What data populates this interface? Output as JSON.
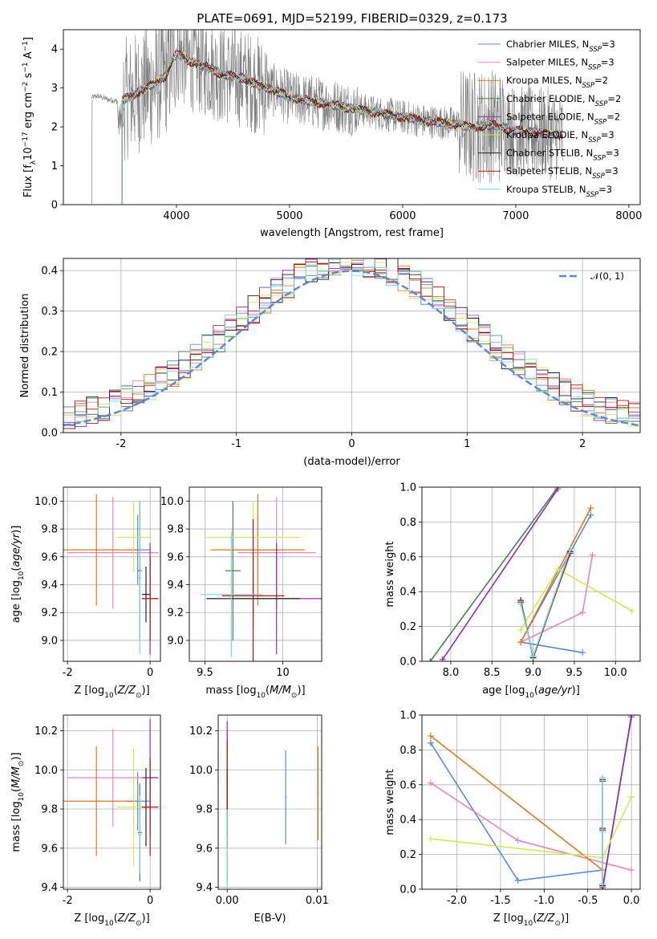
{
  "figure": {
    "title": "PLATE=0691, MJD=52199, FIBERID=0329, z=0.173"
  },
  "colors": {
    "chabrier_miles": "#5b8bd6",
    "salpeter_miles": "#e787b8",
    "kroupa_miles": "#d97a1e",
    "chabrier_elodie": "#4f7d5a",
    "salpeter_elodie": "#8e2faa",
    "kroupa_elodie": "#cfe85a",
    "chabrier_stelib": "#222222",
    "salpeter_stelib": "#b01616",
    "kroupa_stelib": "#7fd6d6",
    "data": "#808080",
    "gaussian": "#5b8bd6",
    "grid": "#b0b0b0"
  },
  "chart_data": [
    {
      "id": "spectrum",
      "type": "line",
      "xlabel": "wavelength [Angstrom, rest frame]",
      "ylabel": "Flux [f_λ 10^-17 erg cm^-2 s^-1 A^-1]",
      "xlim": [
        3000,
        8100
      ],
      "ylim": [
        0,
        4.5
      ],
      "xticks": [
        4000,
        5000,
        6000,
        7000,
        8000
      ],
      "yticks": [
        0,
        1,
        2,
        3,
        4
      ],
      "grid": false,
      "legend_position": "top-right",
      "legend": [
        {
          "model": "Chabrier MILES",
          "nssp": "3",
          "color_key": "chabrier_miles"
        },
        {
          "model": "Salpeter MILES",
          "nssp": "3",
          "color_key": "salpeter_miles"
        },
        {
          "model": "Kroupa MILES",
          "nssp": "2",
          "color_key": "kroupa_miles"
        },
        {
          "model": "Chabrier ELODIE",
          "nssp": "2",
          "color_key": "chabrier_elodie"
        },
        {
          "model": "Salpeter ELODIE",
          "nssp": "2",
          "color_key": "salpeter_elodie"
        },
        {
          "model": "Kroupa ELODIE",
          "nssp": "3",
          "color_key": "kroupa_elodie"
        },
        {
          "model": "Chabrier STELIB",
          "nssp": "3",
          "color_key": "chabrier_stelib"
        },
        {
          "model": "Salpeter STELIB",
          "nssp": "3",
          "color_key": "salpeter_stelib"
        },
        {
          "model": "Kroupa STELIB",
          "nssp": "3",
          "color_key": "kroupa_stelib"
        }
      ],
      "continuum": {
        "x": [
          3250,
          3300,
          3400,
          3500,
          3600,
          3700,
          3800,
          3900,
          3950,
          4000,
          4050,
          4100,
          4200,
          4300,
          4400,
          4500,
          4600,
          4700,
          4800,
          4900,
          5000,
          5200,
          5400,
          5600,
          5800,
          6000,
          6200,
          6400,
          6600,
          6800,
          7000,
          7200,
          7400
        ],
        "y": [
          2.75,
          2.8,
          2.7,
          2.65,
          2.8,
          2.95,
          3.1,
          3.3,
          3.6,
          3.9,
          3.85,
          3.7,
          3.6,
          3.5,
          3.35,
          3.3,
          3.25,
          3.1,
          3.0,
          2.9,
          2.75,
          2.65,
          2.55,
          2.45,
          2.35,
          2.25,
          2.15,
          2.1,
          2.0,
          2.05,
          1.9,
          1.85,
          1.8
        ]
      }
    },
    {
      "id": "residuals",
      "type": "line",
      "xlabel": "(data-model)/error",
      "ylabel": "Normed distribution",
      "xlim": [
        -2.5,
        2.5
      ],
      "ylim": [
        0,
        0.43
      ],
      "xticks": [
        -2,
        -1,
        0,
        1,
        2
      ],
      "yticks": [
        0.0,
        0.1,
        0.2,
        0.3,
        0.4
      ],
      "grid": true,
      "legend_position": "top-right",
      "legend": [
        {
          "label": "𝒩(0, 1)"
        }
      ],
      "gaussian": {
        "mean": 0,
        "sigma": 1
      }
    },
    {
      "id": "z-age",
      "type": "scatter",
      "xlabel": "Z [log10(Z/Z☉)]",
      "ylabel": "age [log10(age/yr)]",
      "xlim": [
        -2.1,
        0.25
      ],
      "ylim": [
        8.85,
        10.1
      ],
      "xticks": [
        -2,
        0
      ],
      "yticks": [
        9.0,
        9.2,
        9.4,
        9.6,
        9.8,
        10.0
      ],
      "grid": true,
      "points": [
        {
          "model": "Chabrier MILES",
          "x": -0.3,
          "y": 9.65,
          "xerr": 0.3,
          "yerr": 0.25
        },
        {
          "model": "Salpeter MILES",
          "x": -0.9,
          "y": 9.63,
          "xerr": 1.1,
          "yerr": 0.4
        },
        {
          "model": "Kroupa MILES",
          "x": -1.3,
          "y": 9.65,
          "xerr": 1.0,
          "yerr": 0.4
        },
        {
          "model": "Chabrier ELODIE",
          "x": -0.25,
          "y": 9.5,
          "xerr": 0.05,
          "yerr": 0.5
        },
        {
          "model": "Salpeter ELODIE",
          "x": 0.0,
          "y": 9.3,
          "xerr": 0.2,
          "yerr": 0.4
        },
        {
          "model": "Kroupa ELODIE",
          "x": -0.4,
          "y": 9.74,
          "xerr": 0.4,
          "yerr": 0.25
        },
        {
          "model": "Chabrier STELIB",
          "x": -0.1,
          "y": 9.33,
          "xerr": 0.1,
          "yerr": 0.2
        },
        {
          "model": "Salpeter STELIB",
          "x": 0.0,
          "y": 9.3,
          "xerr": 0.2,
          "yerr": 0.3
        },
        {
          "model": "Kroupa STELIB",
          "x": -0.25,
          "y": 9.45,
          "xerr": 0.05,
          "yerr": 0.55
        }
      ]
    },
    {
      "id": "mass-age",
      "type": "scatter",
      "xlabel": "mass [log10(M/M☉)]",
      "ylabel": "",
      "xlim": [
        9.4,
        10.25
      ],
      "ylim": [
        8.85,
        10.1
      ],
      "xticks": [
        9.5,
        10.0
      ],
      "yticks": [
        9.0,
        9.2,
        9.4,
        9.6,
        9.8,
        10.0
      ],
      "grid": true,
      "points": [
        {
          "model": "Chabrier MILES",
          "x": 9.84,
          "y": 9.65,
          "xerr": 0.15,
          "yerr": 0.25
        },
        {
          "model": "Salpeter MILES",
          "x": 9.96,
          "y": 9.63,
          "xerr": 0.25,
          "yerr": 0.4
        },
        {
          "model": "Kroupa MILES",
          "x": 9.84,
          "y": 9.65,
          "xerr": 0.3,
          "yerr": 0.4
        },
        {
          "model": "Chabrier ELODIE",
          "x": 9.68,
          "y": 9.5,
          "xerr": 0.05,
          "yerr": 0.5
        },
        {
          "model": "Salpeter ELODIE",
          "x": 9.96,
          "y": 9.3,
          "xerr": 0.3,
          "yerr": 0.4
        },
        {
          "model": "Kroupa ELODIE",
          "x": 9.81,
          "y": 9.74,
          "xerr": 0.3,
          "yerr": 0.25
        },
        {
          "model": "Chabrier STELIB",
          "x": 9.81,
          "y": 9.3,
          "xerr": 0.3,
          "yerr": 0.2
        },
        {
          "model": "Salpeter STELIB",
          "x": 9.81,
          "y": 9.32,
          "xerr": 0.2,
          "yerr": 0.55
        },
        {
          "model": "Kroupa STELIB",
          "x": 9.67,
          "y": 9.33,
          "xerr": 0.2,
          "yerr": 0.45
        }
      ]
    },
    {
      "id": "age-weight",
      "type": "line",
      "xlabel": "age [log10(age/yr)]",
      "ylabel": "mass weight",
      "xlim": [
        7.65,
        10.3
      ],
      "ylim": [
        0,
        1.0
      ],
      "xticks": [
        8.0,
        8.5,
        9.0,
        9.5,
        10.0
      ],
      "yticks": [
        0.0,
        0.2,
        0.4,
        0.6,
        0.8,
        1.0
      ],
      "grid": true,
      "series": [
        {
          "model": "Chabrier MILES",
          "x": [
            9.6,
            8.85,
            9.7
          ],
          "y": [
            0.05,
            0.11,
            0.84
          ]
        },
        {
          "model": "Salpeter MILES",
          "x": [
            8.85,
            9.6,
            9.72
          ],
          "y": [
            0.11,
            0.28,
            0.61
          ]
        },
        {
          "model": "Kroupa MILES",
          "x": [
            8.85,
            9.7
          ],
          "y": [
            0.11,
            0.88
          ]
        },
        {
          "model": "Chabrier ELODIE",
          "x": [
            7.75,
            9.3
          ],
          "y": [
            0.0,
            1.0
          ]
        },
        {
          "model": "Salpeter ELODIE",
          "x": [
            7.9,
            9.3
          ],
          "y": [
            0.01,
            0.99
          ]
        },
        {
          "model": "Kroupa ELODIE",
          "x": [
            8.85,
            9.3,
            10.2
          ],
          "y": [
            0.18,
            0.53,
            0.29
          ]
        },
        {
          "model": "Chabrier STELIB",
          "x": [
            8.85,
            9.0,
            9.45
          ],
          "y": [
            0.35,
            0.02,
            0.63
          ]
        },
        {
          "model": "Salpeter STELIB",
          "x": [
            8.85,
            9.0,
            9.45
          ],
          "y": [
            0.34,
            0.03,
            0.62
          ]
        },
        {
          "model": "Kroupa STELIB",
          "x": [
            8.85,
            9.0,
            9.45
          ],
          "y": [
            0.33,
            0.03,
            0.64
          ]
        }
      ]
    },
    {
      "id": "z-mass",
      "type": "scatter",
      "xlabel": "Z [log10(Z/Z☉)]",
      "ylabel": "mass [log10(M/M☉)]",
      "xlim": [
        -2.1,
        0.25
      ],
      "ylim": [
        9.39,
        10.28
      ],
      "xticks": [
        -2,
        0
      ],
      "yticks": [
        9.4,
        9.6,
        9.8,
        10.0,
        10.2
      ],
      "grid": true,
      "points": [
        {
          "model": "Chabrier MILES",
          "x": -0.3,
          "y": 9.84,
          "xerr": 0.3,
          "yerr": 0.15
        },
        {
          "model": "Salpeter MILES",
          "x": -0.9,
          "y": 9.96,
          "xerr": 1.1,
          "yerr": 0.25
        },
        {
          "model": "Kroupa MILES",
          "x": -1.3,
          "y": 9.84,
          "xerr": 1.0,
          "yerr": 0.28
        },
        {
          "model": "Chabrier ELODIE",
          "x": -0.25,
          "y": 9.68,
          "xerr": 0.05,
          "yerr": 0.25
        },
        {
          "model": "Salpeter ELODIE",
          "x": 0.0,
          "y": 9.96,
          "xerr": 0.2,
          "yerr": 0.3
        },
        {
          "model": "Kroupa ELODIE",
          "x": -0.4,
          "y": 9.81,
          "xerr": 0.4,
          "yerr": 0.3
        },
        {
          "model": "Chabrier STELIB",
          "x": -0.1,
          "y": 9.81,
          "xerr": 0.1,
          "yerr": 0.2
        },
        {
          "model": "Salpeter STELIB",
          "x": 0.0,
          "y": 9.81,
          "xerr": 0.2,
          "yerr": 0.25
        },
        {
          "model": "Kroupa STELIB",
          "x": -0.25,
          "y": 9.67,
          "xerr": 0.05,
          "yerr": 0.2
        }
      ]
    },
    {
      "id": "ebv-mass",
      "type": "scatter",
      "xlabel": "E(B-V)",
      "ylabel": "",
      "xlim": [
        -0.001,
        0.0105
      ],
      "ylim": [
        9.39,
        10.28
      ],
      "xticks": [
        0.0,
        0.01
      ],
      "xticklabels": [
        "0.00",
        "0.01"
      ],
      "yticks": [
        9.4,
        9.6,
        9.8,
        10.0,
        10.2
      ],
      "grid": true,
      "points": [
        {
          "model": "Chabrier MILES",
          "x": 0.0065,
          "y": 9.86,
          "xerr": 0,
          "yerr": 0.24
        },
        {
          "model": "Salpeter MILES",
          "x": 0.0,
          "y": 9.96,
          "xerr": 0,
          "yerr": 0.25
        },
        {
          "model": "Kroupa MILES",
          "x": 0.0101,
          "y": 9.88,
          "xerr": 0,
          "yerr": 0.24
        },
        {
          "model": "Chabrier ELODIE",
          "x": 0.0,
          "y": 9.68,
          "xerr": 0,
          "yerr": 0.25
        },
        {
          "model": "Salpeter ELODIE",
          "x": 0.0,
          "y": 10.0,
          "xerr": 0,
          "yerr": 0.25
        },
        {
          "model": "Kroupa ELODIE",
          "x": 0.0,
          "y": 9.8,
          "xerr": 0,
          "yerr": 0.3
        },
        {
          "model": "Chabrier STELIB",
          "x": 0.0,
          "y": 9.8,
          "xerr": 0,
          "yerr": 0.2
        },
        {
          "model": "Salpeter STELIB",
          "x": 0.0,
          "y": 9.95,
          "xerr": 0,
          "yerr": 0.2
        },
        {
          "model": "Kroupa STELIB",
          "x": 0.0,
          "y": 9.6,
          "xerr": 0,
          "yerr": 0.2
        }
      ]
    },
    {
      "id": "z-weight",
      "type": "line",
      "xlabel": "Z [log10(Z/Z☉)]",
      "ylabel": "mass weight",
      "xlim": [
        -2.4,
        0.1
      ],
      "ylim": [
        0,
        1.0
      ],
      "xticks": [
        -2.0,
        -1.5,
        -1.0,
        -0.5,
        0.0
      ],
      "yticks": [
        0.0,
        0.2,
        0.4,
        0.6,
        0.8,
        1.0
      ],
      "grid": true,
      "series": [
        {
          "model": "Chabrier MILES",
          "x": [
            -2.3,
            -1.3,
            -0.33
          ],
          "y": [
            0.84,
            0.05,
            0.11
          ]
        },
        {
          "model": "Salpeter MILES",
          "x": [
            -2.3,
            -1.3,
            0.0
          ],
          "y": [
            0.61,
            0.28,
            0.11
          ]
        },
        {
          "model": "Kroupa MILES",
          "x": [
            -2.3,
            -0.33
          ],
          "y": [
            0.88,
            0.11
          ]
        },
        {
          "model": "Chabrier ELODIE",
          "x": [
            -0.33,
            0.0
          ],
          "y": [
            0.0,
            1.0
          ]
        },
        {
          "model": "Salpeter ELODIE",
          "x": [
            -0.33,
            0.0
          ],
          "y": [
            0.01,
            0.99
          ]
        },
        {
          "model": "Kroupa ELODIE",
          "x": [
            -2.3,
            -0.33,
            0.0
          ],
          "y": [
            0.29,
            0.18,
            0.53
          ]
        },
        {
          "model": "Chabrier STELIB",
          "x": [
            -0.33,
            -0.33,
            -0.33
          ],
          "y": [
            0.63,
            0.35,
            0.02
          ]
        },
        {
          "model": "Salpeter STELIB",
          "x": [
            -0.33,
            -0.33,
            -0.33
          ],
          "y": [
            0.62,
            0.34,
            0.03
          ]
        },
        {
          "model": "Kroupa STELIB",
          "x": [
            -0.33,
            -0.33,
            -0.33
          ],
          "y": [
            0.64,
            0.33,
            0.03
          ]
        }
      ]
    }
  ]
}
